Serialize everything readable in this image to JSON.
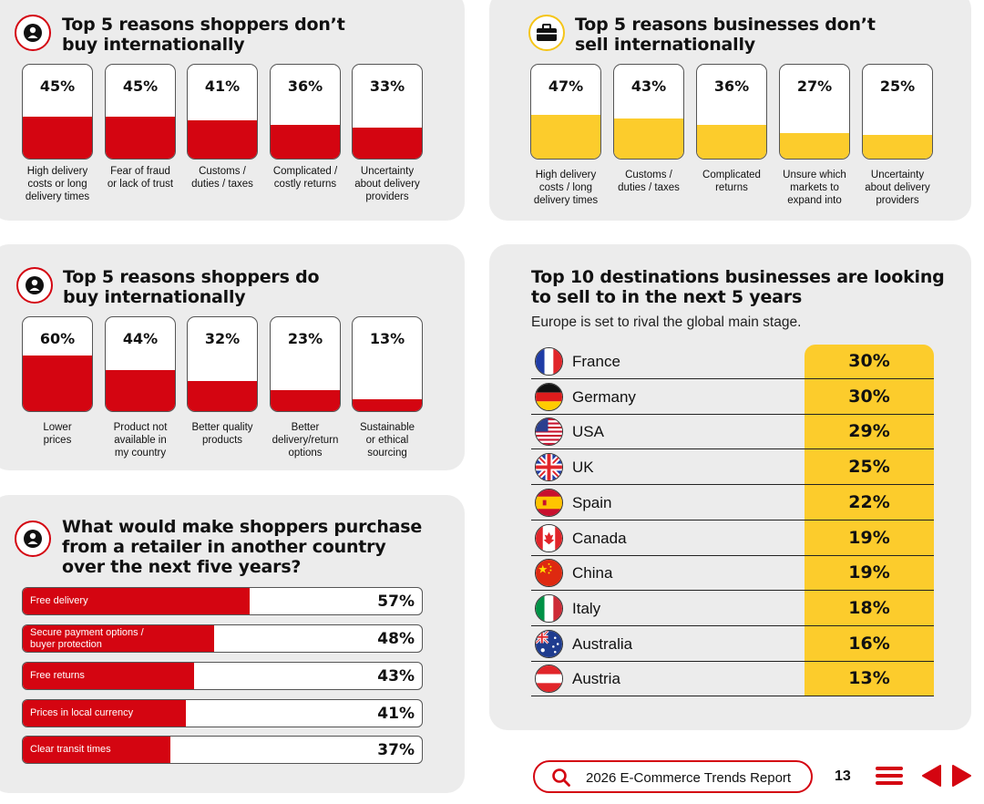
{
  "chart_data": [
    {
      "type": "bar",
      "title": "Top 5 reasons shoppers don’t buy internationally",
      "categories": [
        "High delivery costs or long delivery times",
        "Fear of fraud or lack of trust",
        "Customs / duties / taxes",
        "Complicated / costly returns",
        "Uncertainty about delivery providers"
      ],
      "values": [
        45,
        45,
        41,
        36,
        33
      ],
      "labels": [
        "45%",
        "45%",
        "41%",
        "36%",
        "33%"
      ],
      "ylim": [
        0,
        100
      ]
    },
    {
      "type": "bar",
      "title": "Top 5 reasons businesses don’t sell internationally",
      "categories": [
        "High delivery costs / long delivery times",
        "Customs / duties / taxes",
        "Complicated returns",
        "Unsure which markets to expand into",
        "Uncertainty about delivery providers"
      ],
      "values": [
        47,
        43,
        36,
        27,
        25
      ],
      "labels": [
        "47%",
        "43%",
        "36%",
        "27%",
        "25%"
      ],
      "ylim": [
        0,
        100
      ]
    },
    {
      "type": "bar",
      "title": "Top 5 reasons shoppers do buy internationally",
      "categories": [
        "Lower prices",
        "Product not available in my country",
        "Better quality products",
        "Better delivery/return options",
        "Sustainable or ethical sourcing"
      ],
      "values": [
        60,
        44,
        32,
        23,
        13
      ],
      "labels": [
        "60%",
        "44%",
        "32%",
        "23%",
        "13%"
      ],
      "ylim": [
        0,
        100
      ]
    },
    {
      "type": "bar",
      "orientation": "horizontal",
      "title": "What would make shoppers purchase from a retailer in another country over the next five years?",
      "categories": [
        "Free delivery",
        "Secure payment options / buyer protection",
        "Free returns",
        "Prices in local currency",
        "Clear transit times"
      ],
      "values": [
        57,
        48,
        43,
        41,
        37
      ],
      "labels": [
        "57%",
        "48%",
        "43%",
        "41%",
        "37%"
      ],
      "xlim": [
        0,
        100
      ]
    },
    {
      "type": "table",
      "title": "Top 10 destinations businesses are looking to sell to in the next 5 years",
      "subtitle": "Europe is set to rival the global main stage.",
      "categories": [
        "France",
        "Germany",
        "USA",
        "UK",
        "Spain",
        "Canada",
        "China",
        "Italy",
        "Australia",
        "Austria"
      ],
      "values": [
        30,
        30,
        29,
        25,
        22,
        19,
        19,
        18,
        16,
        13
      ],
      "labels": [
        "30%",
        "30%",
        "29%",
        "25%",
        "22%",
        "19%",
        "19%",
        "18%",
        "16%",
        "13%"
      ]
    }
  ],
  "panels": {
    "shoppers_dont": {
      "title_line1": "Top 5 reasons shoppers don’t",
      "title_line2": "buy internationally",
      "label_lines": [
        [
          "High delivery",
          "costs or long",
          "delivery times"
        ],
        [
          "Fear of fraud",
          "or lack of trust"
        ],
        [
          "Customs /",
          "duties / taxes"
        ],
        [
          "Complicated /",
          "costly returns"
        ],
        [
          "Uncertainty",
          "about delivery",
          "providers"
        ]
      ]
    },
    "businesses_dont": {
      "title_line1": "Top 5 reasons businesses don’t",
      "title_line2": "sell internationally",
      "label_lines": [
        [
          "High delivery",
          "costs / long",
          "delivery times"
        ],
        [
          "Customs /",
          "duties / taxes"
        ],
        [
          "Complicated",
          "returns"
        ],
        [
          "Unsure which",
          "markets to",
          "expand into"
        ],
        [
          "Uncertainty",
          "about delivery",
          "providers"
        ]
      ]
    },
    "shoppers_do": {
      "title_line1": "Top 5 reasons shoppers do",
      "title_line2": "buy internationally",
      "label_lines": [
        [
          "Lower",
          "prices"
        ],
        [
          "Product not",
          "available in",
          "my country"
        ],
        [
          "Better quality",
          "products"
        ],
        [
          "Better",
          "delivery/return",
          "options"
        ],
        [
          "Sustainable",
          "or ethical",
          "sourcing"
        ]
      ]
    },
    "future_purchase": {
      "title_line1": "What would make shoppers purchase",
      "title_line2": "from a retailer in another country",
      "title_line3": "over the next five years?",
      "label_lines": [
        [
          "Free delivery"
        ],
        [
          "Secure payment options /",
          "buyer protection"
        ],
        [
          "Free returns"
        ],
        [
          "Prices in local currency"
        ],
        [
          "Clear transit times"
        ]
      ]
    },
    "destinations": {
      "title_line1": "Top 10 destinations businesses are looking",
      "title_line2": "to sell to in the next 5 years"
    }
  },
  "footer": {
    "search_label": "2026 E-Commerce Trends Report",
    "page_number": "13"
  },
  "colors": {
    "red": "#d40511",
    "yellow": "#fccc2c",
    "panel_bg": "#ececec"
  },
  "icons": {
    "shopper": "person-icon",
    "business": "briefcase-icon",
    "search": "search-icon",
    "menu": "menu-icon",
    "prev": "arrow-left-icon",
    "next": "arrow-right-icon"
  }
}
